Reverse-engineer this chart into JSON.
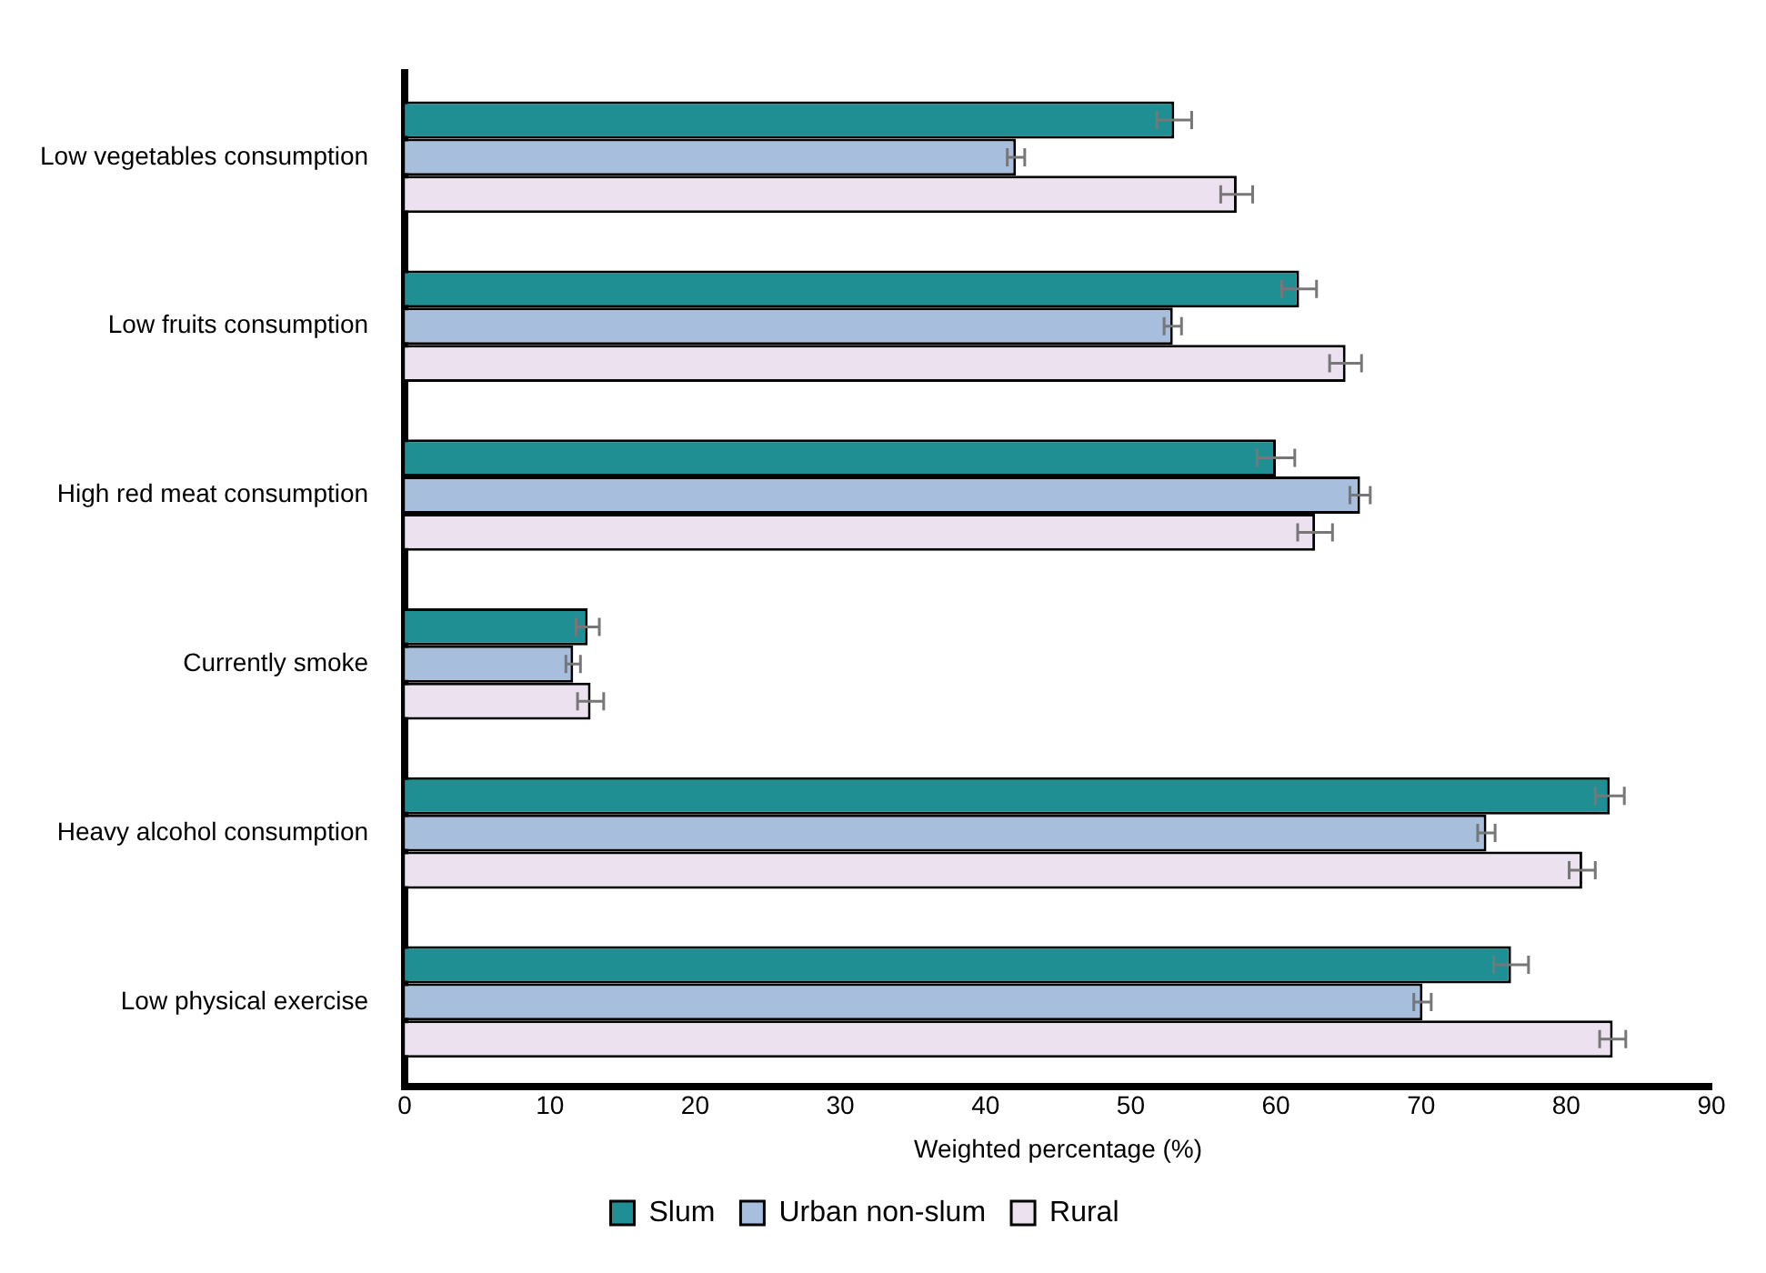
{
  "chart_data": {
    "type": "bar",
    "orientation": "horizontal",
    "xlabel": "Weighted percentage (%)",
    "categories": [
      "Low vegetables consumption",
      "Low fruits consumption",
      "High red meat consumption",
      "Currently smoke",
      "Heavy alcohol consumption",
      "Low physical exercise"
    ],
    "series": [
      {
        "name": "Slum",
        "color": "#1f8f94",
        "values": [
          53.0,
          61.6,
          60.0,
          12.6,
          83.0,
          76.2
        ],
        "errors": [
          1.2,
          1.2,
          1.3,
          0.8,
          1.0,
          1.2
        ]
      },
      {
        "name": "Urban non-slum",
        "color": "#a7bedd",
        "values": [
          42.1,
          52.9,
          65.8,
          11.6,
          74.5,
          70.1
        ],
        "errors": [
          0.6,
          0.6,
          0.7,
          0.5,
          0.6,
          0.6
        ]
      },
      {
        "name": "Rural",
        "color": "#ece1ef",
        "values": [
          57.3,
          64.8,
          62.7,
          12.8,
          81.1,
          83.2
        ],
        "errors": [
          1.1,
          1.1,
          1.2,
          0.9,
          0.9,
          0.9
        ]
      }
    ],
    "xlim": [
      0,
      90
    ],
    "xticks": [
      0,
      10,
      20,
      30,
      40,
      50,
      60,
      70,
      80,
      90
    ],
    "grid": false,
    "legend": "bottom"
  }
}
